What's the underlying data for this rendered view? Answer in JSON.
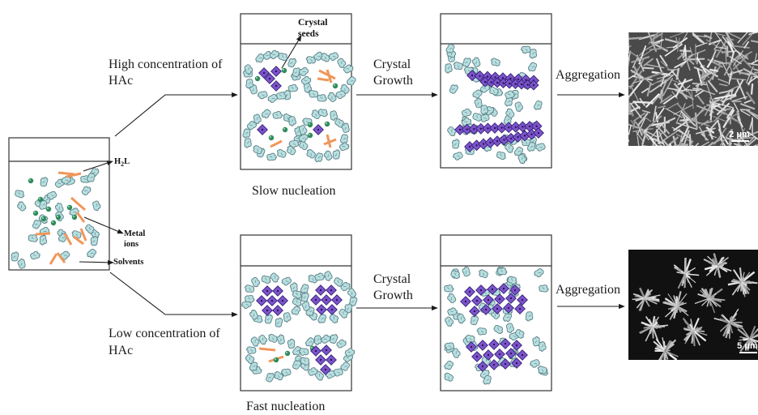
{
  "labels": {
    "high_concentration": "High concentration of",
    "high_hac": "HAc",
    "low_concentration": "Low concentration of",
    "low_hac": "HAc",
    "crystal_seeds_line1": "Crystal",
    "crystal_seeds_line2": "seeds",
    "crystal_growth_top_1": "Crystal",
    "crystal_growth_top_2": "Growth",
    "crystal_growth_bottom_1": "Crystal",
    "crystal_growth_bottom_2": "Growth",
    "aggregation_top": "Aggregation",
    "aggregation_bottom": "Aggregation",
    "slow_nucleation": "Slow nucleation",
    "fast_nucleation": "Fast nucleation",
    "h2l_prefix": "H",
    "h2l_sub": "2",
    "h2l_suffix": "L",
    "metal_line1": "Metal",
    "metal_line2": "ions",
    "solvents": "Solvents",
    "scale_top": "2 μm",
    "scale_bottom": "5 μm"
  },
  "colors": {
    "solvent_fill": "#b7dfe0",
    "solvent_stroke": "#5a7f86",
    "linker": "#f0965a",
    "metal_ion": "#2f8a5c",
    "crystal_fill": "#7c53c9",
    "crystal_stroke": "#2a1a6e",
    "line": "#1a1a1a"
  }
}
